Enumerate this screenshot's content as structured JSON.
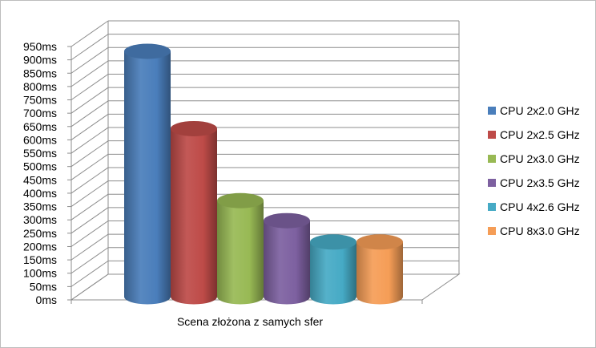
{
  "chart_data": {
    "type": "bar",
    "categories": [
      "Scena złożona z samych sfer"
    ],
    "series": [
      {
        "name": "CPU 2x2.0 GHz",
        "color": "#4a7ebb",
        "values": [
          920
        ]
      },
      {
        "name": "CPU 2x2.5 GHz",
        "color": "#be4b48",
        "values": [
          630
        ]
      },
      {
        "name": "CPU 2x3.0 GHz",
        "color": "#98b954",
        "values": [
          360
        ]
      },
      {
        "name": "CPU 2x3.5 GHz",
        "color": "#7d60a0",
        "values": [
          285
        ]
      },
      {
        "name": "CPU 4x2.6 GHz",
        "color": "#46aac5",
        "values": [
          205
        ]
      },
      {
        "name": "CPU 8x3.0 GHz",
        "color": "#f59d56",
        "values": [
          205
        ]
      }
    ],
    "ylim": [
      0,
      950
    ],
    "y_tick_step": 50,
    "y_tick_suffix": "ms",
    "grid": true,
    "legend_position": "right",
    "three_d": true,
    "bar_shape": "cylinder"
  }
}
